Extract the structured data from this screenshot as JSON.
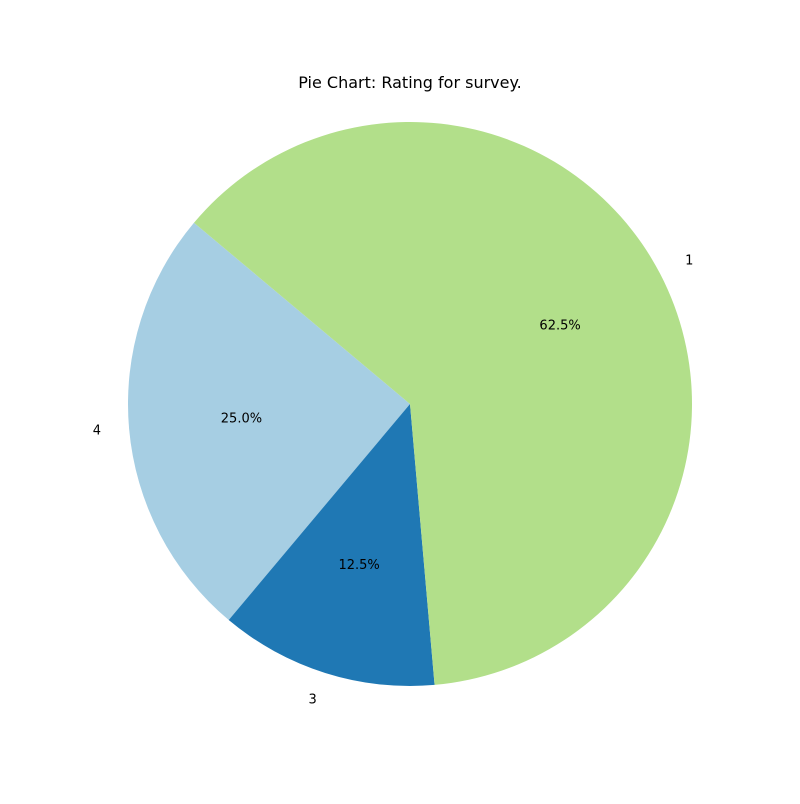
{
  "chart_data": {
    "type": "pie",
    "title": "Pie Chart: Rating for survey.",
    "slices": [
      {
        "label": "4",
        "value": 25.0,
        "pct_label": "25.0%",
        "color": "#a6cee3"
      },
      {
        "label": "3",
        "value": 12.5,
        "pct_label": "12.5%",
        "color": "#1f78b4"
      },
      {
        "label": "1",
        "value": 62.5,
        "pct_label": "62.5%",
        "color": "#b2df8a"
      }
    ],
    "start_angle_deg": 140,
    "direction": "counterclockwise"
  }
}
